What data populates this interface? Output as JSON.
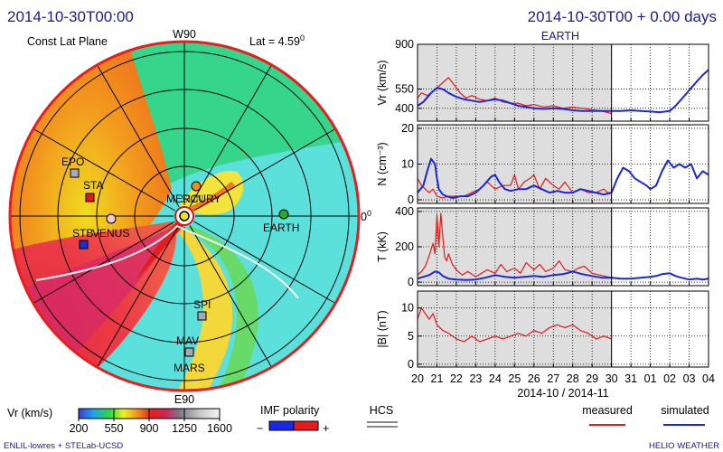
{
  "header": {
    "left_datetime": "2014-10-30T00:00",
    "right_datetime": "2014-10-30T00 + 0.00 days",
    "target": "EARTH"
  },
  "polar_plot": {
    "title": "Const Lat Plane",
    "latitude": "Lat = 4.59",
    "latitude_sup": "0",
    "top_label": "W90",
    "bottom_label": "E90",
    "right_label": "0",
    "right_label_sup": "0",
    "bodies": [
      {
        "name": "EPO",
        "color": "#a8a8c8"
      },
      {
        "name": "STA",
        "color": "#e01818"
      },
      {
        "name": "STB",
        "color": "#1a2ce0"
      },
      {
        "name": "VENUS",
        "color": "#f0c8d0"
      },
      {
        "name": "MERCURY",
        "color": "#f08c1e"
      },
      {
        "name": "SUN",
        "color": "#f0e020"
      },
      {
        "name": "EARTH",
        "color": "#2ca82c"
      },
      {
        "name": "SPI",
        "color": "#a8a8b0"
      },
      {
        "name": "MAV",
        "color": "#a8a8b0"
      },
      {
        "name": "MARS",
        "color": "#a8a8b0"
      }
    ]
  },
  "colorbar": {
    "label": "Vr  (km/s)",
    "ticks": [
      "200",
      "550",
      "900",
      "1250",
      "1600"
    ],
    "range": [
      200,
      1600
    ]
  },
  "imf": {
    "label": "IMF polarity",
    "minus": "−",
    "plus": "+",
    "neg_color": "#1a28e8",
    "pos_color": "#e81a1a"
  },
  "hcs": {
    "label": "HCS"
  },
  "legend": {
    "measured": "measured",
    "simulated": "simulated",
    "measured_color": "#e01a1a",
    "simulated_color": "#1a28d8"
  },
  "footer": {
    "left": "ENLIL-lowres + STELab-UCSD",
    "right": "HELIO  WEATHER"
  },
  "chart_data": {
    "type": "line",
    "x_tick_labels": [
      "20",
      "21",
      "22",
      "23",
      "24",
      "25",
      "26",
      "27",
      "28",
      "29",
      "30",
      "31",
      "01",
      "02",
      "03",
      "04"
    ],
    "xlabel": "2014-10 / 2014-11",
    "x_start": "2014-10-20",
    "x_end": "2014-11-04",
    "current_time": "2014-10-30",
    "shaded_until": "2014-10-30",
    "panels": [
      {
        "ylabel": "Vr (km/s)",
        "yticks": [
          "900",
          "550",
          "400"
        ],
        "ytick_values": [
          900,
          550,
          400
        ],
        "ylim": [
          300,
          900
        ],
        "series": [
          {
            "name": "measured",
            "color": "#e01a1a",
            "x": [
              0.0,
              0.2,
              0.5,
              0.8,
              1.0,
              1.3,
              1.6,
              1.9,
              2.2,
              2.5,
              2.8,
              3.2,
              3.6,
              4.0,
              4.4,
              4.8,
              5.2,
              5.6,
              6.0,
              6.5,
              7.0,
              7.5,
              8.0,
              8.5,
              9.0,
              9.5,
              9.7,
              10.0
            ],
            "y": [
              480,
              520,
              500,
              530,
              560,
              600,
              640,
              580,
              520,
              480,
              500,
              470,
              460,
              480,
              450,
              440,
              440,
              420,
              430,
              410,
              420,
              400,
              410,
              400,
              390,
              380,
              370,
              360
            ]
          },
          {
            "name": "simulated",
            "color": "#1a28d8",
            "x": [
              0.0,
              0.3,
              0.7,
              1.0,
              1.3,
              1.6,
              2.0,
              2.4,
              2.8,
              3.2,
              3.6,
              4.0,
              4.4,
              4.8,
              5.2,
              5.6,
              6.0,
              6.5,
              7.0,
              7.5,
              8.0,
              8.5,
              9.0,
              9.5,
              10.0,
              10.5,
              11.0,
              11.5,
              12.0,
              12.5,
              13.0,
              13.3,
              13.6,
              14.0,
              14.4,
              14.7,
              15.0
            ],
            "y": [
              420,
              450,
              520,
              560,
              550,
              520,
              490,
              470,
              460,
              450,
              460,
              470,
              460,
              440,
              420,
              410,
              400,
              395,
              400,
              395,
              385,
              380,
              380,
              380,
              380,
              380,
              385,
              380,
              375,
              370,
              380,
              420,
              470,
              540,
              610,
              660,
              700
            ]
          }
        ]
      },
      {
        "ylabel": "N (cm⁻³)",
        "yticks": [
          "20",
          "10",
          "0"
        ],
        "ytick_values": [
          20,
          10,
          0
        ],
        "ylim": [
          -1,
          21
        ],
        "series": [
          {
            "name": "measured",
            "color": "#e01a1a",
            "x": [
              0.0,
              0.2,
              0.4,
              0.6,
              0.8,
              1.0,
              1.3,
              1.6,
              2.0,
              2.4,
              2.8,
              3.2,
              3.6,
              4.0,
              4.4,
              4.8,
              5.0,
              5.2,
              5.5,
              5.8,
              6.0,
              6.3,
              6.6,
              7.0,
              7.3,
              7.6,
              8.0,
              8.4,
              8.8,
              9.2,
              9.6,
              9.8,
              10.0
            ],
            "y": [
              6,
              4,
              3,
              2,
              3,
              1,
              0.5,
              1,
              1,
              1,
              2,
              3,
              5,
              3,
              4,
              4,
              7,
              3,
              5,
              6,
              7,
              3,
              6,
              4,
              3,
              5,
              2,
              3,
              2,
              2,
              3,
              2,
              2
            ]
          },
          {
            "name": "simulated",
            "color": "#1a28d8",
            "x": [
              0.0,
              0.3,
              0.5,
              0.7,
              0.9,
              1.0,
              1.1,
              1.3,
              1.5,
              1.8,
              2.2,
              2.6,
              3.0,
              3.4,
              3.8,
              4.0,
              4.2,
              4.5,
              4.8,
              5.2,
              5.6,
              6.0,
              6.4,
              6.8,
              7.2,
              7.6,
              8.0,
              8.4,
              8.8,
              9.2,
              9.6,
              10.0,
              10.3,
              10.6,
              10.9,
              11.2,
              11.5,
              11.8,
              12.0,
              12.3,
              12.6,
              12.9,
              13.2,
              13.5,
              13.8,
              14.1,
              14.4,
              14.7,
              15.0
            ],
            "y": [
              2,
              4,
              8,
              11.5,
              10,
              6,
              3,
              1.5,
              1,
              0.5,
              1,
              1,
              2,
              4,
              6.5,
              7,
              5,
              3,
              2.5,
              3,
              3,
              4,
              3,
              2,
              2.5,
              2,
              2,
              3,
              2.5,
              2,
              1.5,
              2,
              6,
              9,
              8,
              6,
              5,
              4,
              3,
              4,
              8,
              11,
              9,
              10,
              9,
              10,
              6,
              8,
              7
            ]
          }
        ]
      },
      {
        "ylabel": "T (kK)",
        "yticks": [
          "400",
          "200",
          "0"
        ],
        "ytick_values": [
          400,
          200,
          0
        ],
        "ylim": [
          -20,
          420
        ],
        "series": [
          {
            "name": "measured",
            "color": "#e01a1a",
            "x": [
              0.0,
              0.2,
              0.4,
              0.6,
              0.8,
              0.9,
              1.0,
              1.1,
              1.2,
              1.3,
              1.4,
              1.5,
              1.6,
              1.8,
              2.0,
              2.3,
              2.6,
              3.0,
              3.3,
              3.6,
              4.0,
              4.3,
              4.6,
              5.0,
              5.3,
              5.6,
              6.0,
              6.3,
              6.6,
              7.0,
              7.3,
              7.6,
              8.0,
              8.3,
              8.6,
              9.0,
              9.4,
              9.8,
              10.0
            ],
            "y": [
              40,
              60,
              90,
              150,
              220,
              160,
              380,
              200,
              390,
              260,
              140,
              120,
              160,
              100,
              70,
              40,
              60,
              30,
              50,
              70,
              50,
              100,
              60,
              80,
              50,
              110,
              70,
              100,
              60,
              80,
              120,
              70,
              60,
              80,
              90,
              50,
              40,
              30,
              25
            ]
          },
          {
            "name": "simulated",
            "color": "#1a28d8",
            "x": [
              0.0,
              0.3,
              0.6,
              0.9,
              1.1,
              1.3,
              1.6,
              2.0,
              2.5,
              3.0,
              3.5,
              4.0,
              4.5,
              5.0,
              5.5,
              6.0,
              6.5,
              7.0,
              7.5,
              8.0,
              8.5,
              9.0,
              9.5,
              10.0,
              10.5,
              11.0,
              11.5,
              12.0,
              12.3,
              12.6,
              13.0,
              13.3,
              13.6,
              14.0,
              14.4,
              14.7,
              15.0
            ],
            "y": [
              20,
              30,
              40,
              60,
              55,
              35,
              20,
              15,
              12,
              15,
              25,
              40,
              30,
              25,
              30,
              35,
              30,
              40,
              45,
              60,
              45,
              35,
              25,
              25,
              20,
              20,
              25,
              30,
              35,
              45,
              50,
              35,
              25,
              15,
              20,
              15,
              20
            ]
          }
        ]
      },
      {
        "ylabel": "|B| (nT)",
        "yticks": [
          "10",
          "5",
          "0"
        ],
        "ytick_values": [
          10,
          5,
          0
        ],
        "ylim": [
          -0.5,
          13
        ],
        "series": [
          {
            "name": "measured",
            "color": "#e01a1a",
            "x": [
              0.0,
              0.2,
              0.4,
              0.6,
              0.8,
              1.0,
              1.3,
              1.6,
              2.0,
              2.4,
              2.8,
              3.2,
              3.6,
              4.0,
              4.4,
              4.8,
              5.2,
              5.6,
              6.0,
              6.4,
              6.8,
              7.2,
              7.6,
              8.0,
              8.4,
              8.8,
              9.2,
              9.6,
              10.0
            ],
            "y": [
              8,
              10,
              9,
              8,
              9,
              7,
              6,
              5.5,
              4.5,
              4,
              5,
              4,
              4.5,
              5,
              4.5,
              5,
              5.5,
              5,
              6,
              5.5,
              6.5,
              7,
              6.5,
              7,
              6,
              5.5,
              4.5,
              5,
              4.5
            ]
          }
        ]
      }
    ]
  }
}
